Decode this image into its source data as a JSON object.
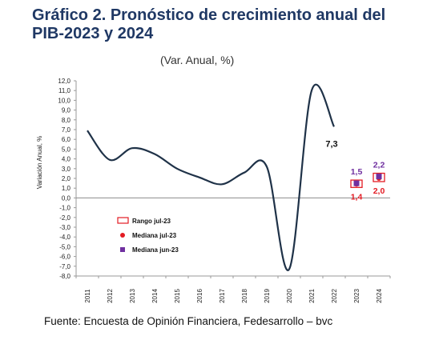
{
  "title": "Gráfico 2. Pronóstico de crecimiento anual del PIB-2023 y 2024",
  "subtitle": "(Var. Anual, %)",
  "source": "Fuente: Encuesta de Opinión Financiera, Fedesarrollo – bvc",
  "chart_data": {
    "type": "line",
    "ylabel": "Variación Anual, %",
    "xlabel": "",
    "ylim": [
      -8.0,
      12.0
    ],
    "yticks": [
      "12,0",
      "11,0",
      "10,0",
      "9,0",
      "8,0",
      "7,0",
      "6,0",
      "5,0",
      "4,0",
      "3,0",
      "2,0",
      "1,0",
      "0,0",
      "-1,0",
      "-2,0",
      "-3,0",
      "-4,0",
      "-5,0",
      "-6,0",
      "-7,0",
      "-8,0"
    ],
    "ytick_values": [
      12,
      11,
      10,
      9,
      8,
      7,
      6,
      5,
      4,
      3,
      2,
      1,
      0,
      -1,
      -2,
      -3,
      -4,
      -5,
      -6,
      -7,
      -8
    ],
    "categories": [
      "2011",
      "2012",
      "2013",
      "2014",
      "2015",
      "2016",
      "2017",
      "2018",
      "2019",
      "2020",
      "2021",
      "2022",
      "2023",
      "2024"
    ],
    "series": [
      {
        "type": "line",
        "values": [
          6.9,
          3.9,
          5.1,
          4.5,
          3.0,
          2.1,
          1.4,
          2.6,
          3.2,
          -7.3,
          11.0,
          7.3,
          null,
          null
        ],
        "end_label": "7,3",
        "color": "#1f3248"
      },
      {
        "name": "Rango jul-23",
        "type": "range",
        "color": "#e31b23",
        "points": [
          {
            "category": "2023",
            "low": 1.4,
            "high": 1.5
          },
          {
            "category": "2024",
            "low": 2.0,
            "high": 2.2
          }
        ]
      },
      {
        "name": "Mediana jul-23",
        "type": "marker",
        "color": "#e31b23",
        "points": [
          {
            "category": "2023",
            "value": 1.4
          },
          {
            "category": "2024",
            "value": 2.0
          }
        ]
      },
      {
        "name": "Mediana jun-23",
        "type": "marker",
        "color": "#7030a0",
        "points": [
          {
            "category": "2023",
            "value": 1.5
          },
          {
            "category": "2024",
            "value": 2.2
          }
        ]
      }
    ],
    "data_labels": [
      {
        "category": "2023",
        "value": 1.5,
        "text": "1,5",
        "color": "#7030a0",
        "position": "above"
      },
      {
        "category": "2023",
        "value": 1.4,
        "text": "1,4",
        "color": "#e31b23",
        "position": "below"
      },
      {
        "category": "2024",
        "value": 2.2,
        "text": "2,2",
        "color": "#7030a0",
        "position": "above"
      },
      {
        "category": "2024",
        "value": 2.0,
        "text": "2,0",
        "color": "#e31b23",
        "position": "below"
      }
    ],
    "legend": {
      "placement": "lower-left",
      "entries": [
        {
          "label": "Rango jul-23",
          "symbol": "open-rect",
          "color": "#e31b23"
        },
        {
          "label": "Mediana jul-23",
          "symbol": "circle",
          "color": "#e31b23"
        },
        {
          "label": "Mediana jun-23",
          "symbol": "square",
          "color": "#7030a0"
        }
      ]
    },
    "grid": false,
    "zero_line": true
  }
}
